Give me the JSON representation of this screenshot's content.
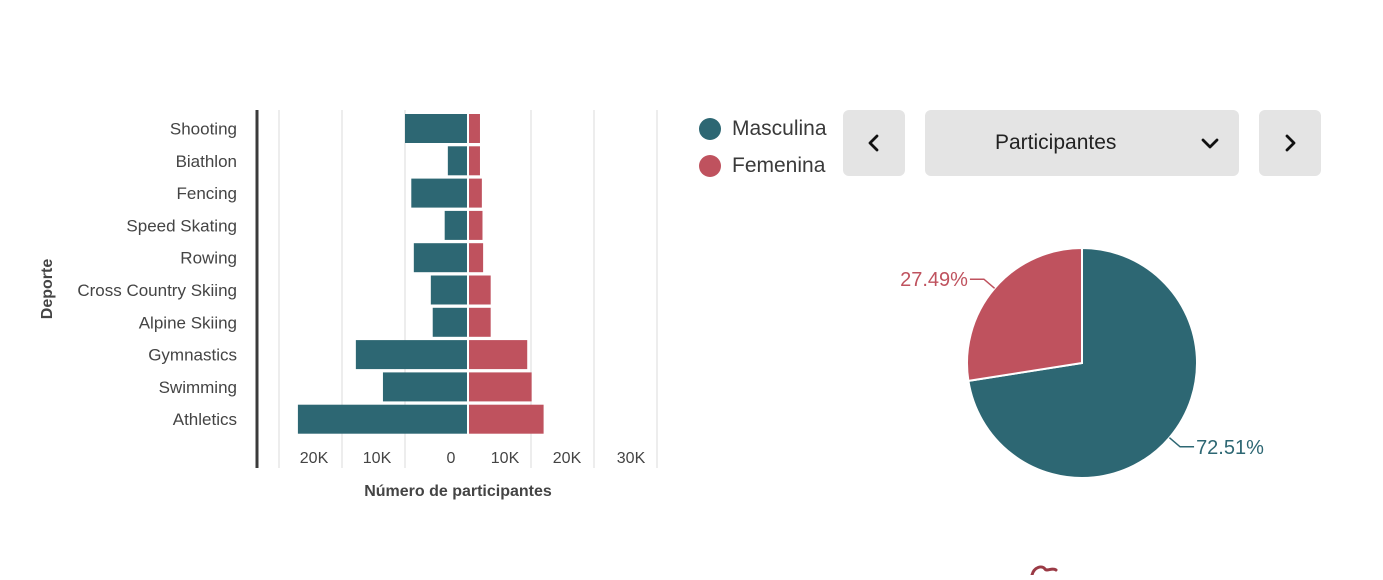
{
  "legend": [
    {
      "label": "Masculina",
      "color": "#2d6773"
    },
    {
      "label": "Femenina",
      "color": "#bf525e"
    }
  ],
  "controls": {
    "selected_metric": "Participantes",
    "prev_icon": "chevron-left-icon",
    "next_icon": "chevron-right-icon",
    "dropdown_icon": "chevron-down-icon"
  },
  "chart_data": [
    {
      "type": "bar",
      "orientation": "horizontal-diverging",
      "xlabel": "Número de participantes",
      "ylabel": "Deporte",
      "categories": [
        "Shooting",
        "Biathlon",
        "Fencing",
        "Speed Skating",
        "Rowing",
        "Cross Country Skiing",
        "Alpine Skiing",
        "Gymnastics",
        "Swimming",
        "Athletics"
      ],
      "series": [
        {
          "name": "Masculina",
          "color": "#2d6773",
          "side": "left",
          "values": [
            10000,
            3200,
            9000,
            3700,
            8600,
            5900,
            5600,
            17800,
            13500,
            27000
          ]
        },
        {
          "name": "Femenina",
          "color": "#bf525e",
          "side": "right",
          "values": [
            1900,
            1900,
            2200,
            2300,
            2400,
            3600,
            3600,
            9400,
            10100,
            12000
          ]
        }
      ],
      "xlim": [
        -30000,
        30000
      ],
      "ticks": [
        {
          "value": -20000,
          "label": "20K"
        },
        {
          "value": -10000,
          "label": "10K"
        },
        {
          "value": 0,
          "label": "0"
        },
        {
          "value": 10000,
          "label": "10K"
        },
        {
          "value": 20000,
          "label": "20K"
        },
        {
          "value": 30000,
          "label": "30K"
        }
      ],
      "grid": true
    },
    {
      "type": "pie",
      "slices": [
        {
          "name": "Masculina",
          "value": 72.51,
          "label": "72.51%",
          "color": "#2d6773"
        },
        {
          "name": "Femenina",
          "value": 27.49,
          "label": "27.49%",
          "color": "#bf525e"
        }
      ]
    }
  ]
}
